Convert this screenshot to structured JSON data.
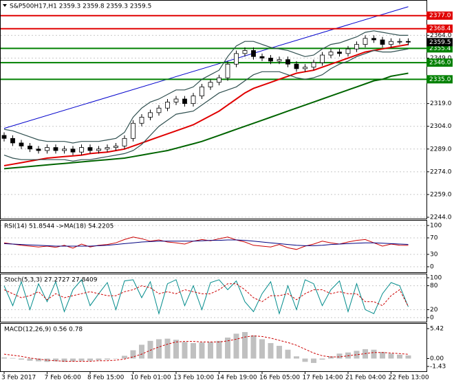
{
  "chart_data": [
    {
      "type": "candlestick",
      "title": "S&P500H17,H1  2359.3 2359.8 2359.3 2359.5",
      "categories": [
        "3 Feb 2017",
        null,
        null,
        null,
        null,
        "7 Feb 06:00",
        null,
        null,
        null,
        null,
        "8 Feb 15:00",
        null,
        null,
        null,
        null,
        "10 Feb 01:00",
        null,
        null,
        null,
        null,
        "13 Feb 10:00",
        null,
        null,
        null,
        null,
        "14 Feb 19:00",
        null,
        null,
        null,
        null,
        "16 Feb 05:00",
        null,
        null,
        null,
        null,
        "17 Feb 14:00",
        null,
        null,
        null,
        null,
        "21 Feb 04:00",
        null,
        null,
        null,
        null,
        "22 Feb 13:00",
        null,
        null
      ],
      "open": [
        2298,
        2296,
        2293,
        2291,
        2289,
        2288,
        2290,
        2288,
        2289,
        2287,
        2290,
        2288,
        2289,
        2290,
        2291,
        2296,
        2306,
        2310,
        2313,
        2316,
        2320,
        2322,
        2319,
        2324,
        2330,
        2333,
        2336,
        2345,
        2352,
        2354,
        2350,
        2349,
        2347,
        2348,
        2345,
        2342,
        2343,
        2346,
        2351,
        2353,
        2352,
        2355,
        2358,
        2362,
        2361,
        2358,
        2360,
        2360
      ],
      "high": [
        2300,
        2298,
        2295,
        2293,
        2291,
        2292,
        2292,
        2291,
        2291,
        2292,
        2292,
        2291,
        2292,
        2293,
        2298,
        2308,
        2312,
        2315,
        2318,
        2322,
        2324,
        2324,
        2326,
        2332,
        2335,
        2338,
        2347,
        2354,
        2356,
        2356,
        2352,
        2351,
        2350,
        2350,
        2347,
        2345,
        2348,
        2353,
        2355,
        2355,
        2357,
        2360,
        2364,
        2364,
        2363,
        2362,
        2362,
        2362
      ],
      "low": [
        2294,
        2291,
        2289,
        2287,
        2286,
        2286,
        2286,
        2286,
        2285,
        2285,
        2286,
        2286,
        2287,
        2288,
        2289,
        2294,
        2304,
        2308,
        2311,
        2314,
        2318,
        2317,
        2317,
        2322,
        2328,
        2331,
        2334,
        2343,
        2350,
        2348,
        2347,
        2345,
        2345,
        2343,
        2340,
        2340,
        2341,
        2344,
        2349,
        2350,
        2350,
        2353,
        2356,
        2359,
        2356,
        2356,
        2358,
        2357.5
      ],
      "close": [
        2296,
        2293,
        2291,
        2289,
        2288,
        2290,
        2288,
        2289,
        2287,
        2290,
        2288,
        2289,
        2290,
        2291,
        2296,
        2306,
        2310,
        2313,
        2316,
        2320,
        2322,
        2319,
        2324,
        2330,
        2333,
        2336,
        2345,
        2352,
        2354,
        2350,
        2349,
        2347,
        2348,
        2345,
        2342,
        2343,
        2346,
        2351,
        2353,
        2352,
        2355,
        2358,
        2362,
        2361,
        2358,
        2360,
        2360,
        2359.5
      ],
      "series": [
        {
          "color": "#e00000",
          "width": 2,
          "values": [
            2278,
            2279,
            2280,
            2281,
            2282,
            2283,
            2283.5,
            2284,
            2284.5,
            2285,
            2286,
            2286.5,
            2287,
            2288,
            2289,
            2291,
            2293,
            2295,
            2297,
            2299,
            2301,
            2303,
            2305,
            2308,
            2311,
            2314,
            2318,
            2322,
            2326,
            2329,
            2331,
            2333,
            2335,
            2337,
            2339,
            2340,
            2341,
            2343,
            2345,
            2347,
            2349,
            2351,
            2353,
            2354,
            2355,
            2356,
            2357,
            2358
          ]
        },
        {
          "color": "#006400",
          "width": 2,
          "values": [
            2276,
            2276.5,
            2277,
            2277.5,
            2278,
            2278.5,
            2279,
            2279.5,
            2280,
            2280.5,
            2281,
            2281.5,
            2282,
            2282.5,
            2283,
            2284,
            2285,
            2286,
            2287,
            2288,
            2289.5,
            2291,
            2292.5,
            2294,
            2296,
            2298,
            2300,
            2302,
            2304,
            2306,
            2308,
            2310,
            2312,
            2314,
            2316,
            2318,
            2320,
            2322,
            2324,
            2326,
            2328,
            2330,
            2332,
            2334,
            2335,
            2337,
            2338,
            2339
          ]
        },
        {
          "color": "#2f4f4f",
          "width": 1.2,
          "values": [
            2302,
            2301,
            2299,
            2297,
            2295,
            2294,
            2294,
            2294,
            2293,
            2294,
            2294,
            2294,
            2295,
            2296,
            2300,
            2310,
            2316,
            2320,
            2322,
            2325,
            2328,
            2328,
            2330,
            2335,
            2338,
            2341,
            2350,
            2357,
            2360,
            2360,
            2358,
            2356,
            2355,
            2354,
            2352,
            2350,
            2351,
            2355,
            2358,
            2359,
            2361,
            2363,
            2366,
            2367,
            2366,
            2365,
            2364,
            2364
          ]
        },
        {
          "color": "#2f4f4f",
          "width": 1.2,
          "values": [
            2285,
            2283,
            2282,
            2282,
            2282,
            2282,
            2282,
            2282,
            2281,
            2282,
            2282,
            2283,
            2284,
            2285,
            2286,
            2288,
            2292,
            2298,
            2304,
            2308,
            2312,
            2313,
            2314,
            2318,
            2322,
            2326,
            2328,
            2330,
            2334,
            2338,
            2340,
            2340,
            2340,
            2338,
            2336,
            2335,
            2336,
            2338,
            2342,
            2345,
            2347,
            2350,
            2352,
            2354,
            2353,
            2353,
            2354,
            2355
          ]
        }
      ],
      "trendline": {
        "color": "#0000cc",
        "values": [
          2302.6,
          2382.9
        ]
      },
      "levels": [
        {
          "value": 2377,
          "label": "2377.0",
          "color": "#e00000"
        },
        {
          "value": 2368.4,
          "label": "2368.4",
          "color": "#e00000"
        },
        {
          "value": 2355.4,
          "label": "2355.4",
          "color": "#008000"
        },
        {
          "value": 2346,
          "label": "2346.0",
          "color": "#008000"
        },
        {
          "value": 2335,
          "label": "2335.0",
          "color": "#008000"
        }
      ],
      "last": {
        "value": 2359.5,
        "label": "2359.5",
        "color": "#000000"
      },
      "ylim": [
        2244,
        2386.4
      ],
      "yticks": [
        {
          "value": 2364,
          "label": "2364.0"
        },
        {
          "value": 2349,
          "label": "2349.0"
        },
        {
          "value": 2319,
          "label": "2319.0"
        },
        {
          "value": 2304,
          "label": "2304.0"
        },
        {
          "value": 2289,
          "label": "2289.0"
        },
        {
          "value": 2274,
          "label": "2274.0"
        },
        {
          "value": 2259,
          "label": "2259.0"
        },
        {
          "value": 2244,
          "label": "2244.0"
        }
      ],
      "grid": true
    },
    {
      "type": "line",
      "title": "RSI(14) 51.8544 ->MA(18) 54.2205",
      "series": [
        {
          "color": "#cc0000",
          "values": [
            58,
            55,
            52,
            50,
            48,
            50,
            47,
            52,
            45,
            55,
            48,
            52,
            54,
            58,
            66,
            72,
            68,
            62,
            65,
            60,
            58,
            55,
            62,
            66,
            63,
            68,
            72,
            65,
            60,
            52,
            50,
            48,
            54,
            46,
            42,
            50,
            55,
            62,
            58,
            55,
            60,
            64,
            66,
            58,
            50,
            55,
            52,
            51.85
          ]
        },
        {
          "color": "#000080",
          "values": [
            56,
            55,
            54,
            53,
            52,
            51,
            50,
            50,
            50,
            50,
            50,
            51,
            52,
            54,
            56,
            58,
            60,
            61,
            62,
            62,
            62,
            62,
            62,
            63,
            64,
            64,
            65,
            65,
            64,
            62,
            60,
            58,
            56,
            54,
            52,
            51,
            51,
            52,
            54,
            55,
            56,
            57,
            58,
            58,
            57,
            56,
            55,
            54.22
          ]
        }
      ],
      "ylim": [
        0,
        100
      ],
      "yticks": [
        100,
        70,
        30,
        0
      ],
      "grid": true
    },
    {
      "type": "line",
      "title": "Stoch(5,3,3) 27.2727 27.8409",
      "series": [
        {
          "color": "#008b8b",
          "values": [
            80,
            30,
            90,
            20,
            85,
            40,
            90,
            15,
            70,
            95,
            30,
            60,
            88,
            20,
            92,
            95,
            50,
            90,
            10,
            85,
            95,
            30,
            80,
            20,
            88,
            95,
            70,
            92,
            40,
            15,
            60,
            90,
            10,
            80,
            20,
            95,
            85,
            30,
            70,
            92,
            15,
            85,
            20,
            10,
            60,
            88,
            80,
            27.27
          ]
        },
        {
          "color": "#cc0000",
          "dash": true,
          "values": [
            70,
            60,
            50,
            55,
            65,
            45,
            60,
            50,
            55,
            60,
            65,
            60,
            55,
            55,
            65,
            70,
            80,
            75,
            60,
            65,
            60,
            70,
            65,
            60,
            60,
            70,
            85,
            85,
            70,
            50,
            40,
            55,
            55,
            60,
            45,
            60,
            70,
            70,
            60,
            65,
            60,
            60,
            40,
            40,
            30,
            55,
            70,
            27.84
          ]
        }
      ],
      "ylim": [
        0,
        100
      ],
      "yticks": [
        100,
        80,
        20,
        0
      ],
      "grid": true
    },
    {
      "type": "bar",
      "title": "MACD(12,26,9) 0.56 0.78",
      "color": "#c0c0c0",
      "values": [
        0.2,
        0.1,
        -0.2,
        -0.4,
        -0.5,
        -0.6,
        -0.5,
        -0.6,
        -0.5,
        -0.4,
        -0.4,
        -0.3,
        -0.2,
        0.0,
        0.5,
        1.5,
        2.5,
        3.2,
        3.5,
        3.6,
        3.4,
        3.0,
        2.8,
        2.9,
        3.0,
        3.2,
        3.8,
        4.5,
        4.8,
        4.2,
        3.5,
        2.8,
        2.3,
        1.6,
        0.4,
        -0.6,
        -0.8,
        -0.2,
        0.4,
        0.9,
        1.1,
        1.4,
        1.7,
        1.6,
        1.2,
        0.9,
        0.7,
        0.56
      ],
      "series": [
        {
          "color": "#cc0000",
          "dash": true,
          "values": [
            0.8,
            0.6,
            0.4,
            0.1,
            -0.1,
            -0.3,
            -0.4,
            -0.5,
            -0.5,
            -0.5,
            -0.5,
            -0.4,
            -0.4,
            -0.3,
            -0.1,
            0.3,
            0.8,
            1.5,
            2.1,
            2.6,
            3.0,
            3.1,
            3.1,
            3.0,
            3.0,
            3.0,
            3.2,
            3.5,
            3.9,
            4.1,
            4.0,
            3.7,
            3.3,
            2.9,
            2.4,
            1.7,
            1.0,
            0.5,
            0.3,
            0.3,
            0.5,
            0.7,
            0.9,
            1.1,
            1.1,
            1.0,
            0.9,
            0.78
          ]
        }
      ],
      "ylim": [
        -1.43,
        5.42
      ],
      "yticks": [
        5.42,
        {
          "value": 0,
          "label": "0.00"
        },
        -1.43
      ]
    }
  ]
}
